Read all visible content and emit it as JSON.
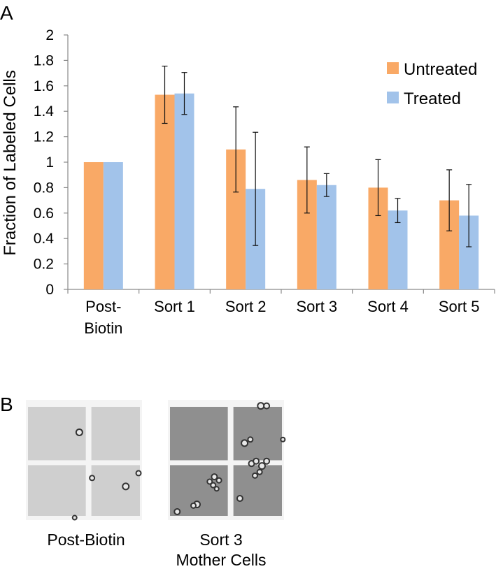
{
  "panels": {
    "a": "A",
    "b": "B"
  },
  "chart_data": {
    "type": "bar",
    "title": "",
    "xlabel": "",
    "ylabel": "Fraction of Labeled Cells",
    "ylim": [
      0,
      2
    ],
    "yticks": [
      0,
      0.2,
      0.4,
      0.6,
      0.8,
      1,
      1.2,
      1.4,
      1.6,
      1.8,
      2
    ],
    "ytick_labels": [
      "0",
      "0.2",
      "0.4",
      "0.6",
      "0.8",
      "1",
      "1.2",
      "1.4",
      "1.6",
      "1.8",
      "2"
    ],
    "categories": [
      [
        "Post-",
        "Biotin"
      ],
      [
        "Sort 1"
      ],
      [
        "Sort 2"
      ],
      [
        "Sort 3"
      ],
      [
        "Sort 4"
      ],
      [
        "Sort 5"
      ]
    ],
    "grid": false,
    "legend_position": "top-right",
    "series": [
      {
        "name": "Untreated",
        "color": "#f9a966",
        "values": [
          1.0,
          1.53,
          1.1,
          0.86,
          0.8,
          0.7
        ],
        "errors": [
          null,
          0.225,
          0.335,
          0.26,
          0.22,
          0.24
        ]
      },
      {
        "name": "Treated",
        "color": "#a2c3ea",
        "values": [
          1.0,
          1.54,
          0.79,
          0.82,
          0.62,
          0.58
        ],
        "errors": [
          null,
          0.165,
          0.445,
          0.09,
          0.095,
          0.245
        ]
      }
    ]
  },
  "micrographs": [
    {
      "caption": [
        "Post-Biotin"
      ],
      "tone": "#cfcfcf"
    },
    {
      "caption": [
        "Sort 3",
        "Mother Cells"
      ],
      "tone": "#8f8f8f"
    }
  ]
}
